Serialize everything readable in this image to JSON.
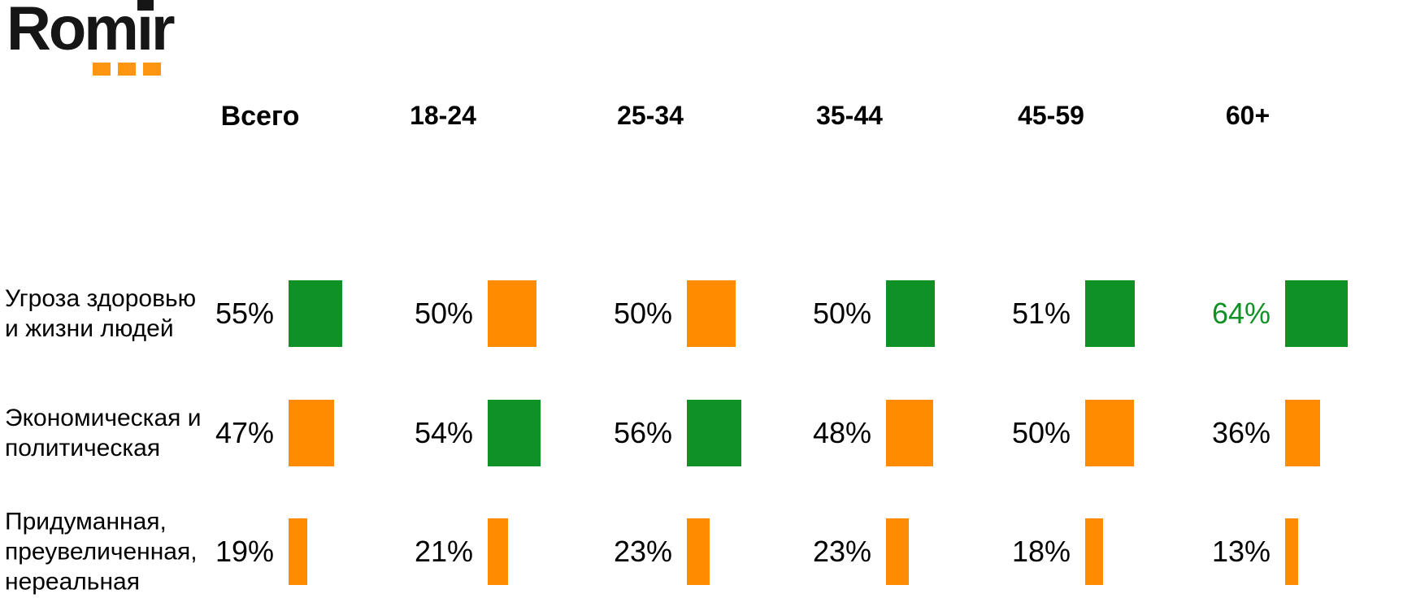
{
  "logo": {
    "text": "Romir"
  },
  "colors": {
    "green": "#109126",
    "orange": "#FF8C00",
    "logo_text": "#161616",
    "logo_squares": "#FF9612",
    "value_text": "#000000"
  },
  "chart_data": {
    "type": "bar",
    "title": "",
    "unit": "%",
    "legend": "none",
    "layout": "matrix of mini-bars: bar width proportional to value, per age-group column",
    "categories": [
      "Всего",
      "18-24",
      "25-34",
      "35-44",
      "45-59",
      "60+"
    ],
    "series": [
      {
        "name": "Угроза здоровью и жизни людей",
        "label_lines": [
          "Угроза здоровью",
          "и жизни людей"
        ],
        "values": [
          55,
          50,
          50,
          50,
          51,
          64
        ],
        "value_labels": [
          "55%",
          "50%",
          "50%",
          "50%",
          "51%",
          "64%"
        ],
        "bar_colors": [
          "green",
          "orange",
          "orange",
          "green",
          "green",
          "green"
        ],
        "value_text_colors": [
          "black",
          "black",
          "black",
          "black",
          "black",
          "green"
        ]
      },
      {
        "name": "Экономическая и политическая",
        "label_lines": [
          "Экономическая и",
          "политическая"
        ],
        "values": [
          47,
          54,
          56,
          48,
          50,
          36
        ],
        "value_labels": [
          "47%",
          "54%",
          "56%",
          "48%",
          "50%",
          "36%"
        ],
        "bar_colors": [
          "orange",
          "green",
          "green",
          "orange",
          "orange",
          "orange"
        ],
        "value_text_colors": [
          "black",
          "black",
          "black",
          "black",
          "black",
          "black"
        ]
      },
      {
        "name": "Придуманная, преувеличенная, нереальная",
        "label_lines": [
          "Придуманная,",
          "преувеличенная,",
          "нереальная"
        ],
        "values": [
          19,
          21,
          23,
          23,
          18,
          13
        ],
        "value_labels": [
          "19%",
          "21%",
          "23%",
          "23%",
          "18%",
          "13%"
        ],
        "bar_colors": [
          "orange",
          "orange",
          "orange",
          "orange",
          "orange",
          "orange"
        ],
        "value_text_colors": [
          "black",
          "black",
          "black",
          "black",
          "black",
          "black"
        ]
      }
    ]
  }
}
